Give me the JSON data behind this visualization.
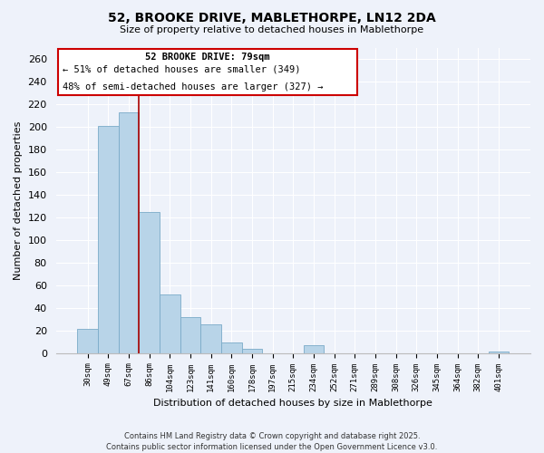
{
  "title_line1": "52, BROOKE DRIVE, MABLETHORPE, LN12 2DA",
  "title_line2": "Size of property relative to detached houses in Mablethorpe",
  "xlabel": "Distribution of detached houses by size in Mablethorpe",
  "ylabel": "Number of detached properties",
  "bar_labels": [
    "30sqm",
    "49sqm",
    "67sqm",
    "86sqm",
    "104sqm",
    "123sqm",
    "141sqm",
    "160sqm",
    "178sqm",
    "197sqm",
    "215sqm",
    "234sqm",
    "252sqm",
    "271sqm",
    "289sqm",
    "308sqm",
    "326sqm",
    "345sqm",
    "364sqm",
    "382sqm",
    "401sqm"
  ],
  "bar_values": [
    21,
    201,
    213,
    125,
    52,
    32,
    25,
    9,
    4,
    0,
    0,
    7,
    0,
    0,
    0,
    0,
    0,
    0,
    0,
    0,
    1
  ],
  "bar_color": "#b8d4e8",
  "bar_edge_color": "#7aaac8",
  "ylim": [
    0,
    270
  ],
  "yticks": [
    0,
    20,
    40,
    60,
    80,
    100,
    120,
    140,
    160,
    180,
    200,
    220,
    240,
    260
  ],
  "red_line_x": 2.5,
  "red_line_color": "#aa0000",
  "annotation_text_line1": "52 BROOKE DRIVE: 79sqm",
  "annotation_text_line2": "← 51% of detached houses are smaller (349)",
  "annotation_text_line3": "48% of semi-detached houses are larger (327) →",
  "footer_line1": "Contains HM Land Registry data © Crown copyright and database right 2025.",
  "footer_line2": "Contains public sector information licensed under the Open Government Licence v3.0.",
  "bg_color": "#eef2fa",
  "plot_bg_color": "#eef2fa",
  "grid_color": "#ffffff",
  "ann_box_color": "white",
  "ann_box_edge": "#cc0000"
}
